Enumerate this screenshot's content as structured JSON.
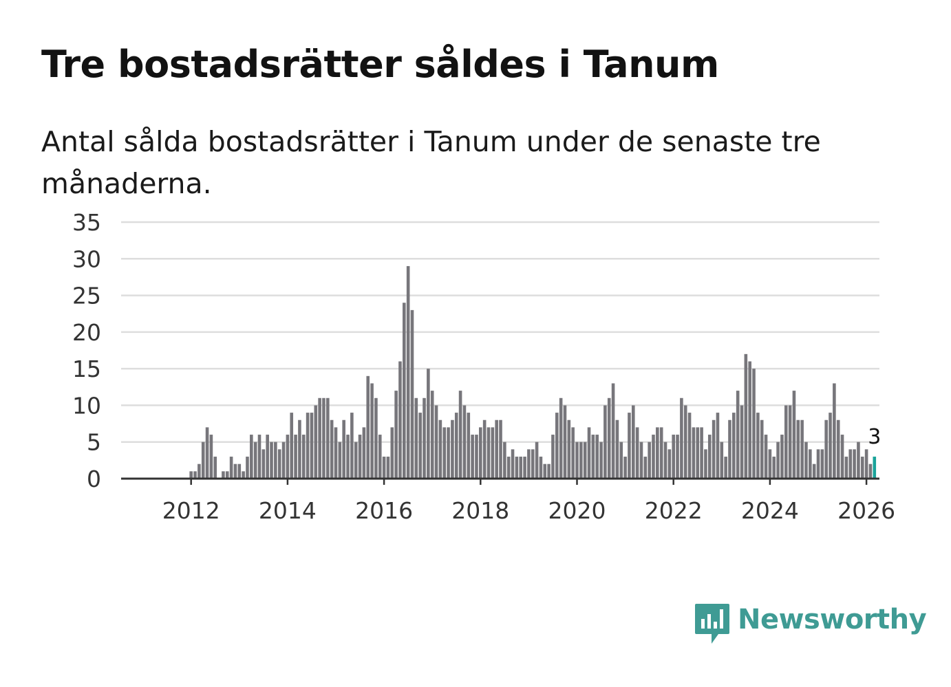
{
  "title": "Tre bostadsrätter såldes i Tanum",
  "subtitle": "Antal sålda bostadsrätter i Tanum under de senaste tre månaderna.",
  "brand": {
    "name": "Newsworthy",
    "color": "#3f9b94",
    "icon": "newsworthy-logo-icon"
  },
  "colors": {
    "bar": "#77767b",
    "highlight": "#1aa39a",
    "grid": "#dddddd",
    "axis": "#333333",
    "text": "#333333"
  },
  "chart_data": {
    "type": "bar",
    "title": "Tre bostadsrätter såldes i Tanum",
    "xlabel": "",
    "ylabel": "",
    "ylim": [
      0,
      35
    ],
    "yticks": [
      0,
      5,
      10,
      15,
      20,
      25,
      30,
      35
    ],
    "xticks": [
      "2012",
      "2014",
      "2016",
      "2018",
      "2020",
      "2022",
      "2024",
      "2026"
    ],
    "start": {
      "year": 2011,
      "month": 1
    },
    "grid": true,
    "highlight_label": "3",
    "series": [
      {
        "name": "Antal sålda bostadsrätter",
        "values": [
          0,
          0,
          0,
          0,
          0,
          0,
          0,
          0,
          0,
          0,
          0,
          0,
          1,
          1,
          2,
          5,
          7,
          6,
          3,
          0,
          1,
          1,
          3,
          2,
          2,
          1,
          3,
          6,
          5,
          6,
          4,
          6,
          5,
          5,
          4,
          5,
          6,
          9,
          6,
          8,
          6,
          9,
          9,
          10,
          11,
          11,
          11,
          8,
          7,
          5,
          8,
          6,
          9,
          5,
          6,
          7,
          14,
          13,
          11,
          6,
          3,
          3,
          7,
          12,
          16,
          24,
          29,
          23,
          11,
          9,
          11,
          15,
          12,
          10,
          8,
          7,
          7,
          8,
          9,
          12,
          10,
          9,
          6,
          6,
          7,
          8,
          7,
          7,
          8,
          8,
          5,
          3,
          4,
          3,
          3,
          3,
          4,
          4,
          5,
          3,
          2,
          2,
          6,
          9,
          11,
          10,
          8,
          7,
          5,
          5,
          5,
          7,
          6,
          6,
          5,
          10,
          11,
          13,
          8,
          5,
          3,
          9,
          10,
          7,
          5,
          3,
          5,
          6,
          7,
          7,
          5,
          4,
          6,
          6,
          11,
          10,
          9,
          7,
          7,
          7,
          4,
          6,
          8,
          9,
          5,
          3,
          8,
          9,
          12,
          10,
          17,
          16,
          15,
          9,
          8,
          6,
          4,
          3,
          5,
          6,
          10,
          10,
          12,
          8,
          8,
          5,
          4,
          2,
          4,
          4,
          8,
          9,
          13,
          8,
          6,
          3,
          4,
          4,
          5,
          3,
          4,
          2,
          3
        ]
      }
    ]
  }
}
